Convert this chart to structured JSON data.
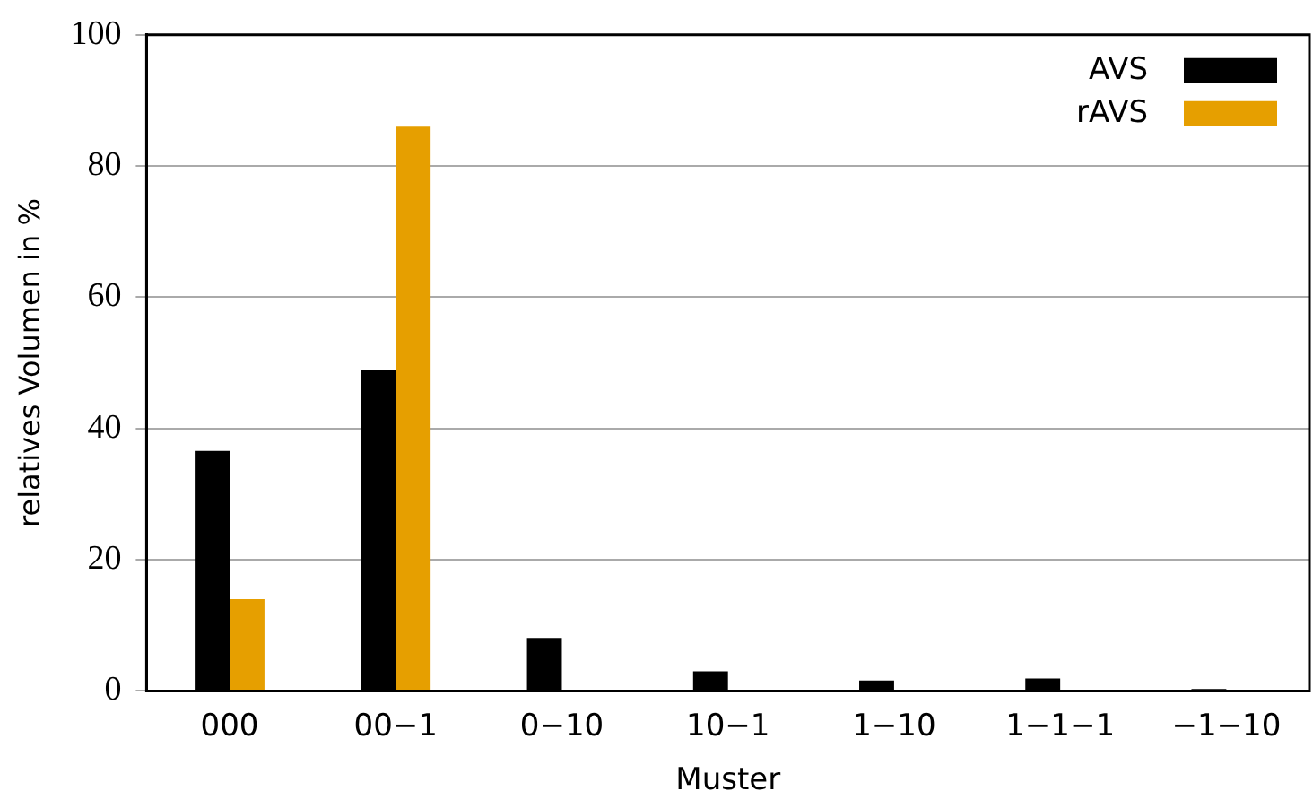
{
  "chart_data": {
    "type": "bar",
    "xlabel": "Muster",
    "ylabel": "relatives Volumen in %",
    "categories": [
      "000",
      "00−1",
      "0−10",
      "10−1",
      "1−10",
      "1−1−1",
      "−1−10"
    ],
    "series": [
      {
        "name": "AVS",
        "color": "#000000",
        "values": [
          36.6,
          48.9,
          8.1,
          3.0,
          1.6,
          1.9,
          0.3
        ]
      },
      {
        "name": "rAVS",
        "color": "#e69f00",
        "values": [
          14.0,
          86.0,
          0,
          0,
          0,
          0,
          0
        ]
      }
    ],
    "ylim": [
      0,
      100
    ],
    "yticks": [
      0,
      20,
      40,
      60,
      80,
      100
    ],
    "grid": "y",
    "legend": "top right"
  }
}
